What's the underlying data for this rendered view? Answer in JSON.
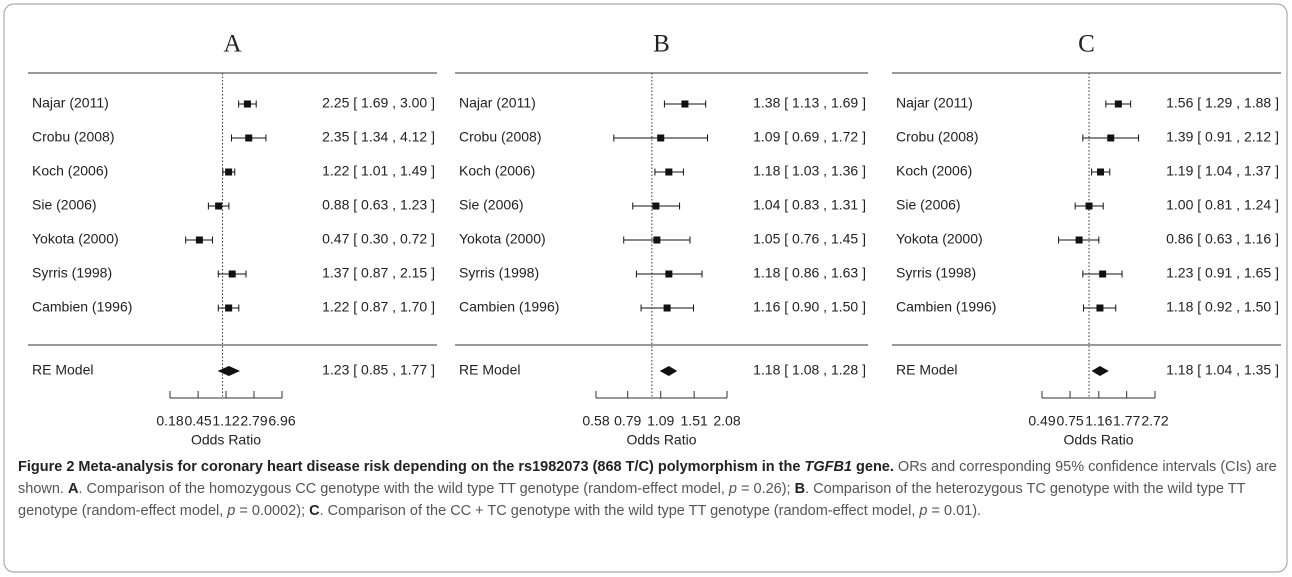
{
  "chart_data": [
    {
      "type": "forest",
      "title": "A",
      "xlabel": "Odds Ratio",
      "log_x": true,
      "reference_line": 1,
      "categories": [
        "Najar (2011)",
        "Crobu (2008)",
        "Koch (2006)",
        "Sie (2006)",
        "Yokota (2000)",
        "Syrris (1998)",
        "Cambien (1996)"
      ],
      "values": [
        2.25,
        2.35,
        1.22,
        0.88,
        0.47,
        1.37,
        1.22
      ],
      "lower": [
        1.69,
        1.34,
        1.01,
        0.63,
        0.3,
        0.87,
        0.87
      ],
      "upper": [
        3.0,
        4.12,
        1.49,
        1.23,
        0.72,
        2.15,
        1.7
      ],
      "value_labels": [
        "2.25 [ 1.69 , 3.00 ]",
        "2.35 [ 1.34 , 4.12 ]",
        "1.22 [ 1.01 , 1.49 ]",
        "0.88 [ 0.63 , 1.23 ]",
        "0.47 [ 0.30 , 0.72 ]",
        "1.37 [ 0.87 , 2.15 ]",
        "1.22 [ 0.87 , 1.70 ]"
      ],
      "summary": {
        "label": "RE Model",
        "value": 1.23,
        "lower": 0.85,
        "upper": 1.77,
        "value_label": "1.23 [ 0.85 , 1.77 ]"
      },
      "xlim": [
        0.18,
        6.96
      ],
      "xticks": [
        0.18,
        0.45,
        1.12,
        2.79,
        6.96
      ]
    },
    {
      "type": "forest",
      "title": "B",
      "xlabel": "Odds Ratio",
      "log_x": true,
      "reference_line": 1,
      "categories": [
        "Najar (2011)",
        "Crobu (2008)",
        "Koch (2006)",
        "Sie (2006)",
        "Yokota (2000)",
        "Syrris (1998)",
        "Cambien (1996)"
      ],
      "values": [
        1.38,
        1.09,
        1.18,
        1.04,
        1.05,
        1.18,
        1.16
      ],
      "lower": [
        1.13,
        0.69,
        1.03,
        0.83,
        0.76,
        0.86,
        0.9
      ],
      "upper": [
        1.69,
        1.72,
        1.36,
        1.31,
        1.45,
        1.63,
        1.5
      ],
      "value_labels": [
        "1.38 [ 1.13 , 1.69 ]",
        "1.09 [ 0.69 , 1.72 ]",
        "1.18 [ 1.03 , 1.36 ]",
        "1.04 [ 0.83 , 1.31 ]",
        "1.05 [ 0.76 , 1.45 ]",
        "1.18 [ 0.86 , 1.63 ]",
        "1.16 [ 0.90 , 1.50 ]"
      ],
      "summary": {
        "label": "RE Model",
        "value": 1.18,
        "lower": 1.08,
        "upper": 1.28,
        "value_label": "1.18 [ 1.08 , 1.28 ]"
      },
      "xlim": [
        0.58,
        2.08
      ],
      "xticks": [
        0.58,
        0.79,
        1.09,
        1.51,
        2.08
      ]
    },
    {
      "type": "forest",
      "title": "C",
      "xlabel": "Odds Ratio",
      "log_x": true,
      "reference_line": 1,
      "categories": [
        "Najar (2011)",
        "Crobu (2008)",
        "Koch (2006)",
        "Sie (2006)",
        "Yokota (2000)",
        "Syrris (1998)",
        "Cambien (1996)"
      ],
      "values": [
        1.56,
        1.39,
        1.19,
        1.0,
        0.86,
        1.23,
        1.18
      ],
      "lower": [
        1.29,
        0.91,
        1.04,
        0.81,
        0.63,
        0.91,
        0.92
      ],
      "upper": [
        1.88,
        2.12,
        1.37,
        1.24,
        1.16,
        1.65,
        1.5
      ],
      "value_labels": [
        "1.56 [ 1.29 , 1.88 ]",
        "1.39 [ 0.91 , 2.12 ]",
        "1.19 [ 1.04 , 1.37 ]",
        "1.00 [ 0.81 , 1.24 ]",
        "0.86 [ 0.63 , 1.16 ]",
        "1.23 [ 0.91 , 1.65 ]",
        "1.18 [ 0.92 , 1.50 ]"
      ],
      "summary": {
        "label": "RE Model",
        "value": 1.18,
        "lower": 1.04,
        "upper": 1.35,
        "value_label": "1.18 [ 1.04 , 1.35 ]"
      },
      "xlim": [
        0.49,
        2.72
      ],
      "xticks": [
        0.49,
        0.75,
        1.16,
        1.77,
        2.72
      ]
    }
  ],
  "caption": [
    "Figure 2 Meta-analysis for coronary heart disease risk depending on the rs1982073 (868 T/C) polymorphism in the ",
    "TGFB1",
    " gene.",
    " ORs and corresponding 95% confidence intervals (CIs) are shown. ",
    "A",
    ". Comparison of the homozygous CC genotype with the wild type TT genotype (random-effect model, ",
    "p",
    " = 0.26); ",
    "B",
    ". Comparison of the heterozygous TC genotype with the wild type TT genotype (random-effect model, ",
    "p",
    " = 0.0002); ",
    "C",
    ". Comparison of the CC + TC genotype with the wild type TT genotype (random-effect model, ",
    "p",
    " = 0.01)."
  ]
}
